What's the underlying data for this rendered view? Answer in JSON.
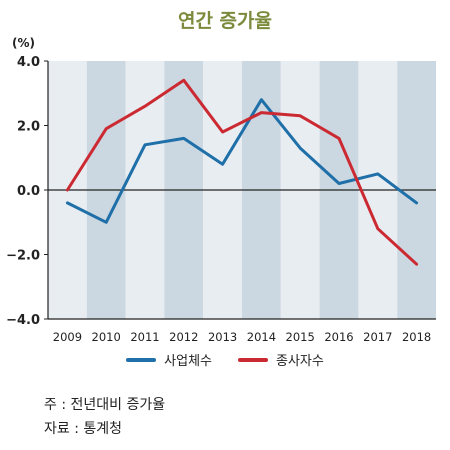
{
  "chart_data": {
    "type": "line",
    "title": "연간 증가율",
    "unit_label": "(%)",
    "categories": [
      "2009",
      "2010",
      "2011",
      "2012",
      "2013",
      "2014",
      "2015",
      "2016",
      "2017",
      "2018"
    ],
    "ylim": [
      -4.0,
      4.0
    ],
    "yticks": [
      "4.0",
      "2.0",
      "0.0",
      "−2.0",
      "−4.0"
    ],
    "ytick_values": [
      4,
      2,
      0,
      -2,
      -4
    ],
    "grid": false,
    "legend_position": "bottom",
    "series": [
      {
        "name": "사업체수",
        "color": "#1f6fa8",
        "values": [
          -0.4,
          -1.0,
          1.4,
          1.6,
          0.8,
          2.8,
          1.3,
          0.2,
          0.5,
          -0.4
        ]
      },
      {
        "name": "종사자수",
        "color": "#cc2a32",
        "values": [
          0.0,
          1.9,
          2.6,
          3.4,
          1.8,
          2.4,
          2.3,
          1.6,
          -1.2,
          -2.3
        ]
      }
    ]
  },
  "notes": {
    "note": "주 : 전년대비 증가율",
    "source": "자료 : 통계청"
  },
  "colors": {
    "band_light": "#e8edf2",
    "band_dark": "#cbd7e1",
    "title": "#7b8a3b"
  }
}
